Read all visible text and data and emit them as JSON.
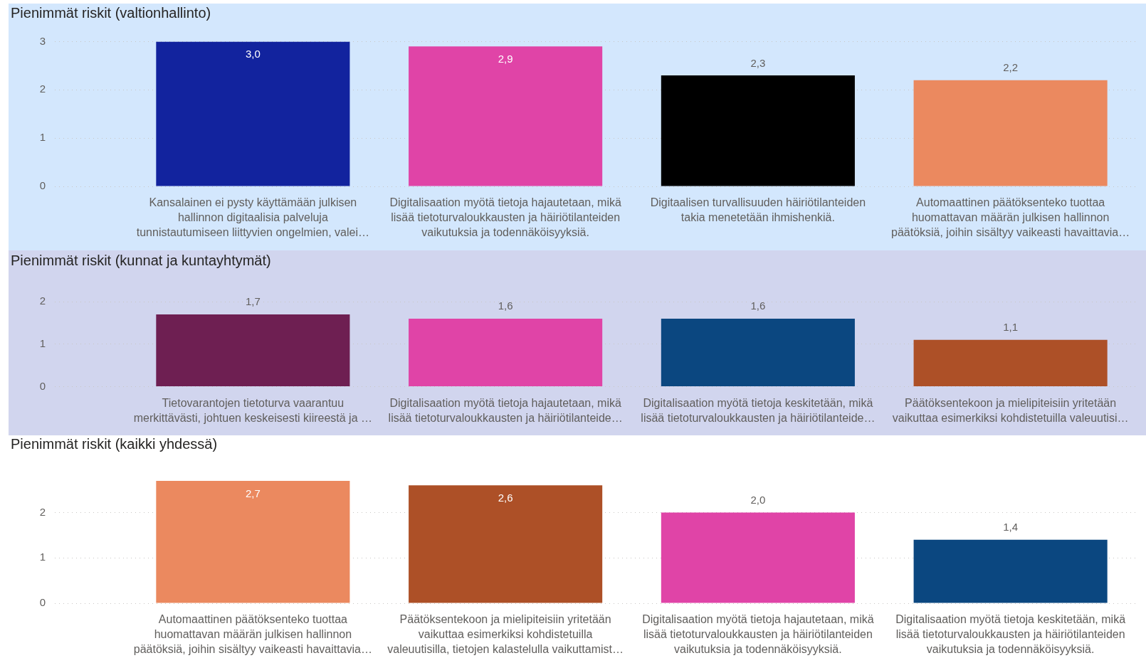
{
  "chart_data": [
    {
      "type": "bar",
      "title": "Pienimmät riskit (valtionhallinto)",
      "categories": [
        "Kansalainen ei pysty käyttämään julkisen hallinnon digitaalisia palveluja tunnistautumiseen liittyvien ongelmien, valei…",
        "Digitalisaation myötä tietoja hajautetaan, mikä lisää tietoturvaloukkausten ja häiriötilanteiden vaikutuksia ja todennäköisyyksiä.",
        "Digitaalisen turvallisuuden häiriötilanteiden takia menetetään ihmishenkiä.",
        "Automaattinen päätöksenteko tuottaa huomattavan määrän julkisen hallinnon päätöksiä, joihin sisältyy vaikeasti havaittavia…"
      ],
      "values": [
        3.0,
        2.9,
        2.3,
        2.2
      ],
      "colors": [
        "#12239e",
        "#e044a7",
        "#000000",
        "#eb895f"
      ],
      "value_labels": [
        "3,0",
        "2,9",
        "2,3",
        "2,2"
      ],
      "ylim": [
        0,
        3
      ],
      "yticks": [
        0,
        1,
        2,
        3
      ],
      "grid": "y"
    },
    {
      "type": "bar",
      "title": "Pienimmät riskit (kunnat ja kuntayhtymät)",
      "categories": [
        "Tietovarantojen tietoturva vaarantuu merkittävästi, johtuen keskeisesti kiireestä ja …",
        "Digitalisaation myötä tietoja hajautetaan, mikä lisää tietoturvaloukkausten ja häiriötilanteide…",
        "Digitalisaation myötä tietoja keskitetään, mikä lisää tietoturvaloukkausten ja häiriötilanteide…",
        "Päätöksentekoon ja mielipiteisiin yritetään vaikuttaa esimerkiksi kohdistetuilla valeuutisi…"
      ],
      "values": [
        1.7,
        1.6,
        1.6,
        1.1
      ],
      "colors": [
        "#6e1f52",
        "#e044a7",
        "#0b4780",
        "#ad5027"
      ],
      "value_labels": [
        "1,7",
        "1,6",
        "1,6",
        "1,1"
      ],
      "ylim": [
        0,
        2
      ],
      "yticks": [
        0,
        1,
        2
      ],
      "grid": "y"
    },
    {
      "type": "bar",
      "title": "Pienimmät riskit (kaikki yhdessä)",
      "categories": [
        "Automaattinen päätöksenteko tuottaa huomattavan määrän julkisen hallinnon päätöksiä, joihin sisältyy vaikeasti havaittavia…",
        "Päätöksentekoon ja mielipiteisiin yritetään vaikuttaa esimerkiksi kohdistetuilla valeuutisilla, tietojen kalastelulla vaikuttamist…",
        "Digitalisaation myötä tietoja hajautetaan, mikä lisää tietoturvaloukkausten ja häiriötilanteiden vaikutuksia ja todennäköisyyksiä.",
        "Digitalisaation myötä tietoja keskitetään, mikä lisää tietoturvaloukkausten ja häiriötilanteiden vaikutuksia ja todennäköisyyksiä."
      ],
      "values": [
        2.7,
        2.6,
        2.0,
        1.4
      ],
      "colors": [
        "#eb895f",
        "#ad5027",
        "#e044a7",
        "#0b4780"
      ],
      "value_labels": [
        "2,7",
        "2,6",
        "2,0",
        "1,4"
      ],
      "ylim": [
        0,
        2.7
      ],
      "yticks": [
        0,
        1,
        2
      ],
      "grid": "y"
    }
  ]
}
